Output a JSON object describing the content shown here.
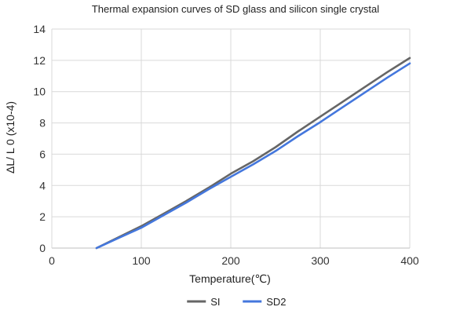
{
  "chart_data": {
    "type": "line",
    "title": "Thermal expansion curves of SD glass and silicon single crystal",
    "xlabel": "Temperature(℃)",
    "ylabel": "ΔL/ L 0 (x10-4)",
    "xlim": [
      0,
      400
    ],
    "ylim": [
      0,
      14
    ],
    "xticks": [
      0,
      100,
      200,
      300,
      400
    ],
    "yticks": [
      0,
      2,
      4,
      6,
      8,
      10,
      12,
      14
    ],
    "xtick_labels": [
      "0",
      "100",
      "200",
      "300",
      "400"
    ],
    "ytick_labels": [
      "0",
      "2",
      "4",
      "6",
      "8",
      "10",
      "12",
      "14"
    ],
    "grid": true,
    "legend_position": "bottom-center",
    "series": [
      {
        "name": "SI",
        "color": "#666666",
        "x": [
          50,
          75,
          100,
          125,
          150,
          175,
          200,
          225,
          250,
          275,
          300,
          325,
          350,
          375,
          400
        ],
        "y": [
          0.0,
          0.7,
          1.4,
          2.2,
          3.0,
          3.85,
          4.75,
          5.55,
          6.45,
          7.45,
          8.4,
          9.35,
          10.3,
          11.25,
          12.15
        ]
      },
      {
        "name": "SD2",
        "color": "#4477dd",
        "x": [
          50,
          75,
          100,
          125,
          150,
          175,
          200,
          225,
          250,
          275,
          300,
          325,
          350,
          375,
          400
        ],
        "y": [
          0.0,
          0.65,
          1.3,
          2.1,
          2.9,
          3.75,
          4.55,
          5.35,
          6.2,
          7.15,
          8.05,
          9.0,
          9.95,
          10.9,
          11.8
        ]
      }
    ]
  }
}
